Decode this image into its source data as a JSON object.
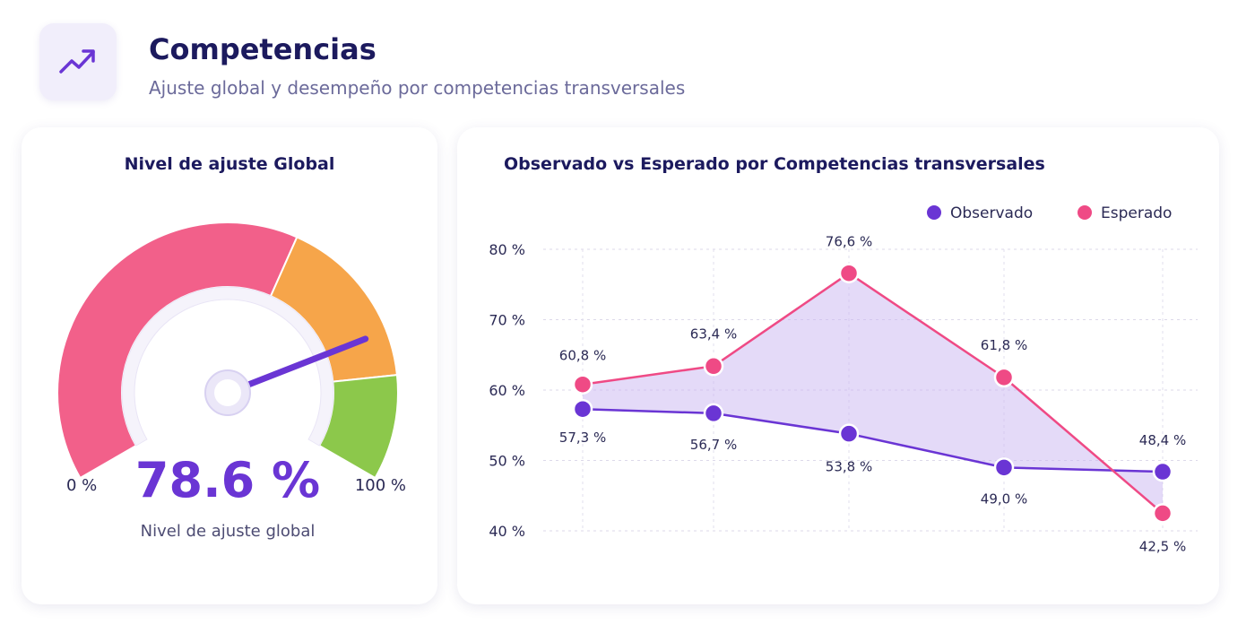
{
  "header": {
    "title": "Competencias",
    "subtitle": "Ajuste global y desempeño por competencias transversales",
    "icon": "trending-up-icon"
  },
  "gauge": {
    "title": "Nivel de ajuste Global",
    "value_text": "78.6 %",
    "value": 78.6,
    "caption": "Nivel de ajuste global",
    "min_label": "0 %",
    "max_label": "100 %",
    "segments": [
      {
        "from": 0,
        "to": 60,
        "color": "#f2608a"
      },
      {
        "from": 60,
        "to": 85,
        "color": "#f6a54a"
      },
      {
        "from": 85,
        "to": 100,
        "color": "#8cc84b"
      }
    ],
    "needle_color": "#6a35d4",
    "value_color": "#6a35d4"
  },
  "chart_data": {
    "type": "line",
    "title": "Observado vs Esperado por Competencias transversales",
    "categories": [
      "",
      "",
      "",
      "",
      ""
    ],
    "ylim": [
      40,
      80
    ],
    "yticks": [
      40,
      50,
      60,
      70,
      80
    ],
    "ytick_labels": [
      "40 %",
      "50 %",
      "60 %",
      "70 %",
      "80 %"
    ],
    "grid": true,
    "legend": "top-right",
    "series": [
      {
        "name": "Observado",
        "color": "#6a35d4",
        "values": [
          57.3,
          56.7,
          53.8,
          49.0,
          48.4
        ],
        "labels": [
          "57,3 %",
          "56,7 %",
          "53,8 %",
          "49,0 %",
          "48,4 %"
        ]
      },
      {
        "name": "Esperado",
        "color": "#ef4a85",
        "values": [
          60.8,
          63.4,
          76.6,
          61.8,
          42.5
        ],
        "labels": [
          "60,8 %",
          "63,4 %",
          "76,6 %",
          "61,8 %",
          "42,5 %"
        ]
      }
    ],
    "fill_color": "#c9b6f2"
  }
}
